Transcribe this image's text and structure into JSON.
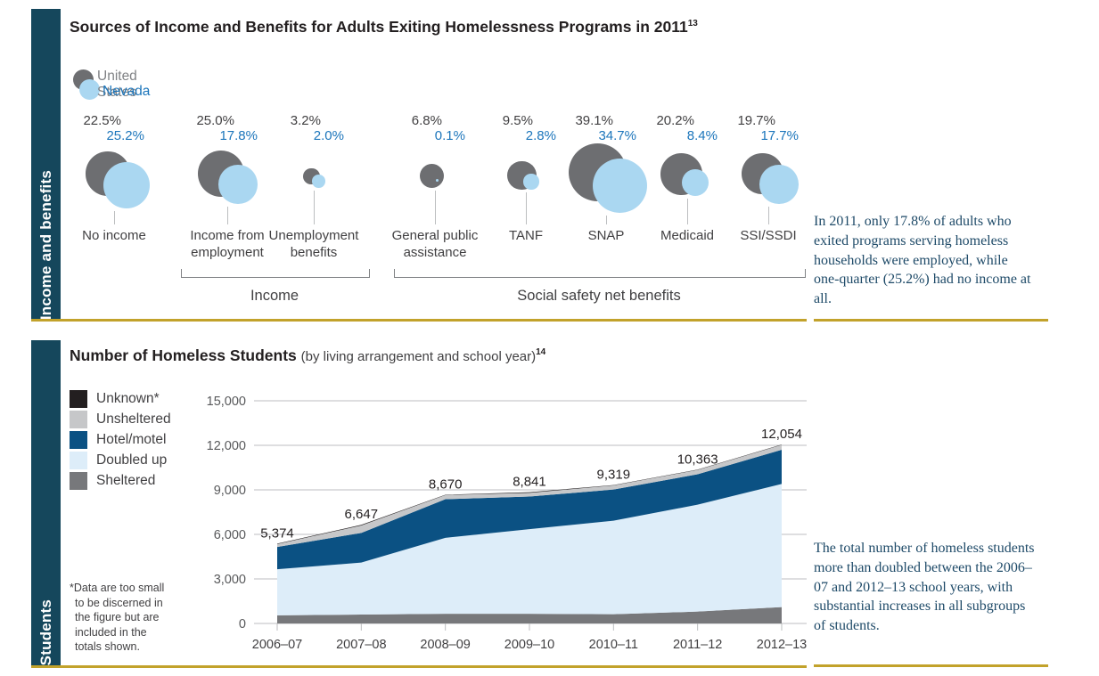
{
  "colors": {
    "sidebar_teal": "#15475c",
    "gold_rule": "#c2a22b",
    "us_bubble": "#6d6e71",
    "nv_bubble": "#aad7f1",
    "us_text": "#414042",
    "nv_text": "#1b75bb",
    "annotation_text": "#1e4a68",
    "gridline": "#bcbec0",
    "axis_label": "#58595b"
  },
  "section_income": {
    "sidebar_label": "Income and benefits",
    "annotation": "In 2011, only 17.8% of adults who exited programs serving homeless households were employed, while one-quarter (25.2%) had no income at all."
  },
  "section_students": {
    "sidebar_label": "Students",
    "footnote": "*Data are too small to be discerned in the figure but are included in the totals shown.",
    "annotation": "The total number of homeless students more than doubled between the 2006–07 and 2012–13 school years, with substantial increases in all subgroups of students."
  },
  "chart_data": [
    {
      "type": "bubble-comparison",
      "title": "Sources of Income and Benefits for Adults Exiting Homelessness Programs in 2011",
      "title_sup": "13",
      "unit": "%",
      "legend": [
        {
          "label": "United States",
          "color": "#6d6e71"
        },
        {
          "label": "Nevada",
          "color": "#aad7f1"
        }
      ],
      "categories": [
        {
          "label": "No income",
          "us": 22.5,
          "nv": 25.2,
          "us_label": "22.5%",
          "nv_label": "25.2%",
          "group": null
        },
        {
          "label": "Income from employment",
          "us": 25.0,
          "nv": 17.8,
          "us_label": "25.0%",
          "nv_label": "17.8%",
          "group": "Income"
        },
        {
          "label": "Unemployment benefits",
          "us": 3.2,
          "nv": 2.0,
          "us_label": "3.2%",
          "nv_label": "2.0%",
          "group": "Income"
        },
        {
          "label": "General public assistance",
          "us": 6.8,
          "nv": 0.1,
          "us_label": "6.8%",
          "nv_label": "0.1%",
          "group": "Social safety net benefits"
        },
        {
          "label": "TANF",
          "us": 9.5,
          "nv": 2.8,
          "us_label": "9.5%",
          "nv_label": "2.8%",
          "group": "Social safety net benefits"
        },
        {
          "label": "SNAP",
          "us": 39.1,
          "nv": 34.7,
          "us_label": "39.1%",
          "nv_label": "34.7%",
          "group": "Social safety net benefits"
        },
        {
          "label": "Medicaid",
          "us": 20.2,
          "nv": 8.4,
          "us_label": "20.2%",
          "nv_label": "8.4%",
          "group": "Social safety net benefits"
        },
        {
          "label": "SSI/SSDI",
          "us": 19.7,
          "nv": 17.7,
          "us_label": "19.7%",
          "nv_label": "17.7%",
          "group": "Social safety net benefits"
        }
      ],
      "group_labels": [
        "Income",
        "Social safety net benefits"
      ]
    },
    {
      "type": "area",
      "title": "Number of Homeless Students",
      "subtitle": "(by living arrangement and school year)",
      "title_sup": "14",
      "categories": [
        "2006–07",
        "2007–08",
        "2008–09",
        "2009–10",
        "2010–11",
        "2011–12",
        "2012–13"
      ],
      "totals": [
        5374,
        6647,
        8670,
        8841,
        9319,
        10363,
        12054
      ],
      "total_labels": [
        "5,374",
        "6,647",
        "8,670",
        "8,841",
        "9,319",
        "10,363",
        "12,054"
      ],
      "ylim": [
        0,
        15000
      ],
      "ytick_values": [
        0,
        3000,
        6000,
        9000,
        12000,
        15000
      ],
      "ytick_labels": [
        "0",
        "3,000",
        "6,000",
        "9,000",
        "12,000",
        "15,000"
      ],
      "grid": true,
      "legend_position": "left",
      "legend": [
        {
          "label": "Unknown*",
          "color": "#231f20"
        },
        {
          "label": "Unsheltered",
          "color": "#c6c7c9"
        },
        {
          "label": "Hotel/motel",
          "color": "#0b5183"
        },
        {
          "label": "Doubled up",
          "color": "#ddedf9"
        },
        {
          "label": "Sheltered",
          "color": "#77787b"
        }
      ],
      "series": [
        {
          "name": "Sheltered",
          "color": "#77787b",
          "values": [
            550,
            600,
            650,
            650,
            620,
            800,
            1100
          ]
        },
        {
          "name": "Doubled up",
          "color": "#ddedf9",
          "values": [
            3100,
            3500,
            5120,
            5700,
            6300,
            7200,
            8300
          ]
        },
        {
          "name": "Hotel/motel",
          "color": "#0b5183",
          "values": [
            1500,
            2000,
            2600,
            2200,
            2100,
            2050,
            2300
          ]
        },
        {
          "name": "Unsheltered",
          "color": "#c6c7c9",
          "values": [
            200,
            500,
            280,
            250,
            280,
            290,
            330
          ]
        },
        {
          "name": "Unknown*",
          "color": "#231f20",
          "values": [
            24,
            47,
            20,
            41,
            19,
            23,
            24
          ]
        }
      ]
    }
  ]
}
